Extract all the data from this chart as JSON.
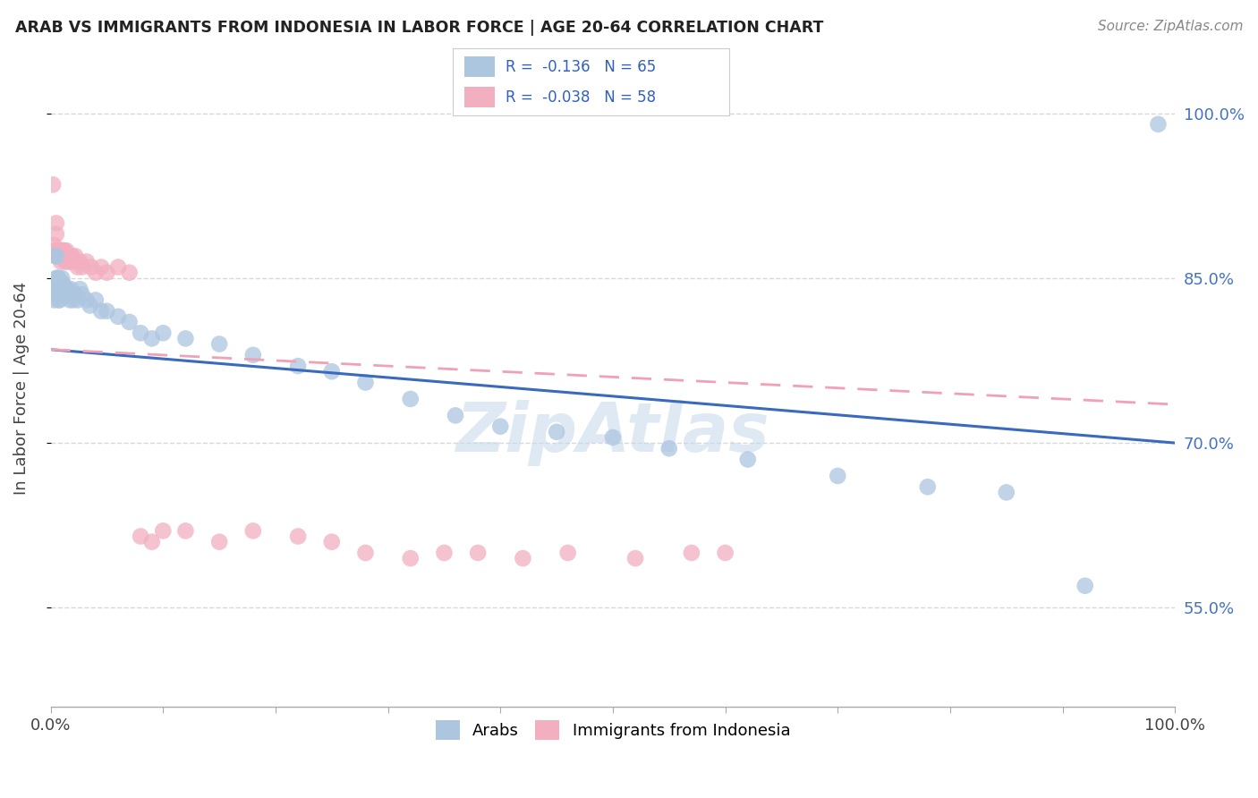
{
  "title": "ARAB VS IMMIGRANTS FROM INDONESIA IN LABOR FORCE | AGE 20-64 CORRELATION CHART",
  "source": "Source: ZipAtlas.com",
  "ylabel": "In Labor Force | Age 20-64",
  "xlim": [
    0,
    1.0
  ],
  "ylim": [
    0.46,
    1.04
  ],
  "yticks": [
    0.55,
    0.7,
    0.85,
    1.0
  ],
  "ytick_labels": [
    "55.0%",
    "70.0%",
    "85.0%",
    "100.0%"
  ],
  "xticks": [
    0.0,
    0.1,
    0.2,
    0.3,
    0.4,
    0.5,
    0.6,
    0.7,
    0.8,
    0.9,
    1.0
  ],
  "xtick_labels_show": [
    "0.0%",
    "",
    "",
    "",
    "",
    "",
    "",
    "",
    "",
    "",
    "100.0%"
  ],
  "legend_r_arab": "-0.136",
  "legend_n_arab": "65",
  "legend_r_indo": "-0.038",
  "legend_n_indo": "58",
  "arab_color": "#adc6e0",
  "indo_color": "#f2afc0",
  "arab_line_color": "#3a6abf",
  "indo_line_color": "#f0a0b8",
  "background_color": "#ffffff",
  "grid_color": "#d8d8d8",
  "arab_x": [
    0.002,
    0.003,
    0.004,
    0.005,
    0.005,
    0.006,
    0.006,
    0.007,
    0.007,
    0.007,
    0.008,
    0.008,
    0.008,
    0.009,
    0.009,
    0.009,
    0.01,
    0.01,
    0.01,
    0.011,
    0.011,
    0.012,
    0.012,
    0.013,
    0.013,
    0.014,
    0.014,
    0.015,
    0.016,
    0.017,
    0.018,
    0.019,
    0.02,
    0.022,
    0.024,
    0.026,
    0.028,
    0.032,
    0.035,
    0.04,
    0.045,
    0.05,
    0.06,
    0.07,
    0.08,
    0.09,
    0.1,
    0.12,
    0.15,
    0.18,
    0.22,
    0.25,
    0.28,
    0.32,
    0.36,
    0.4,
    0.45,
    0.5,
    0.55,
    0.62,
    0.7,
    0.78,
    0.85,
    0.92,
    0.985
  ],
  "arab_y": [
    0.84,
    0.83,
    0.87,
    0.85,
    0.87,
    0.84,
    0.85,
    0.835,
    0.85,
    0.83,
    0.84,
    0.845,
    0.83,
    0.84,
    0.835,
    0.845,
    0.85,
    0.84,
    0.845,
    0.84,
    0.845,
    0.835,
    0.84,
    0.84,
    0.835,
    0.84,
    0.835,
    0.84,
    0.835,
    0.83,
    0.84,
    0.835,
    0.83,
    0.835,
    0.83,
    0.84,
    0.835,
    0.83,
    0.825,
    0.83,
    0.82,
    0.82,
    0.815,
    0.81,
    0.8,
    0.795,
    0.8,
    0.795,
    0.79,
    0.78,
    0.77,
    0.765,
    0.755,
    0.74,
    0.725,
    0.715,
    0.71,
    0.705,
    0.695,
    0.685,
    0.67,
    0.66,
    0.655,
    0.57,
    0.99
  ],
  "indo_x": [
    0.002,
    0.003,
    0.004,
    0.005,
    0.005,
    0.006,
    0.006,
    0.007,
    0.007,
    0.008,
    0.008,
    0.009,
    0.009,
    0.009,
    0.01,
    0.01,
    0.011,
    0.011,
    0.012,
    0.012,
    0.013,
    0.013,
    0.014,
    0.015,
    0.015,
    0.016,
    0.017,
    0.018,
    0.019,
    0.02,
    0.022,
    0.024,
    0.026,
    0.028,
    0.032,
    0.036,
    0.04,
    0.045,
    0.05,
    0.06,
    0.07,
    0.08,
    0.09,
    0.1,
    0.12,
    0.15,
    0.18,
    0.22,
    0.25,
    0.28,
    0.32,
    0.35,
    0.38,
    0.42,
    0.46,
    0.52,
    0.57,
    0.6
  ],
  "indo_y": [
    0.935,
    0.88,
    0.875,
    0.9,
    0.89,
    0.875,
    0.87,
    0.875,
    0.87,
    0.87,
    0.875,
    0.87,
    0.865,
    0.875,
    0.875,
    0.87,
    0.87,
    0.875,
    0.87,
    0.875,
    0.87,
    0.865,
    0.875,
    0.87,
    0.865,
    0.87,
    0.865,
    0.87,
    0.87,
    0.865,
    0.87,
    0.86,
    0.865,
    0.86,
    0.865,
    0.86,
    0.855,
    0.86,
    0.855,
    0.86,
    0.855,
    0.615,
    0.61,
    0.62,
    0.62,
    0.61,
    0.62,
    0.615,
    0.61,
    0.6,
    0.595,
    0.6,
    0.6,
    0.595,
    0.6,
    0.595,
    0.6,
    0.6
  ],
  "arab_trend_x0": 0.0,
  "arab_trend_y0": 0.785,
  "arab_trend_x1": 1.0,
  "arab_trend_y1": 0.7,
  "indo_trend_x0": 0.0,
  "indo_trend_y0": 0.785,
  "indo_trend_x1": 1.0,
  "indo_trend_y1": 0.735
}
